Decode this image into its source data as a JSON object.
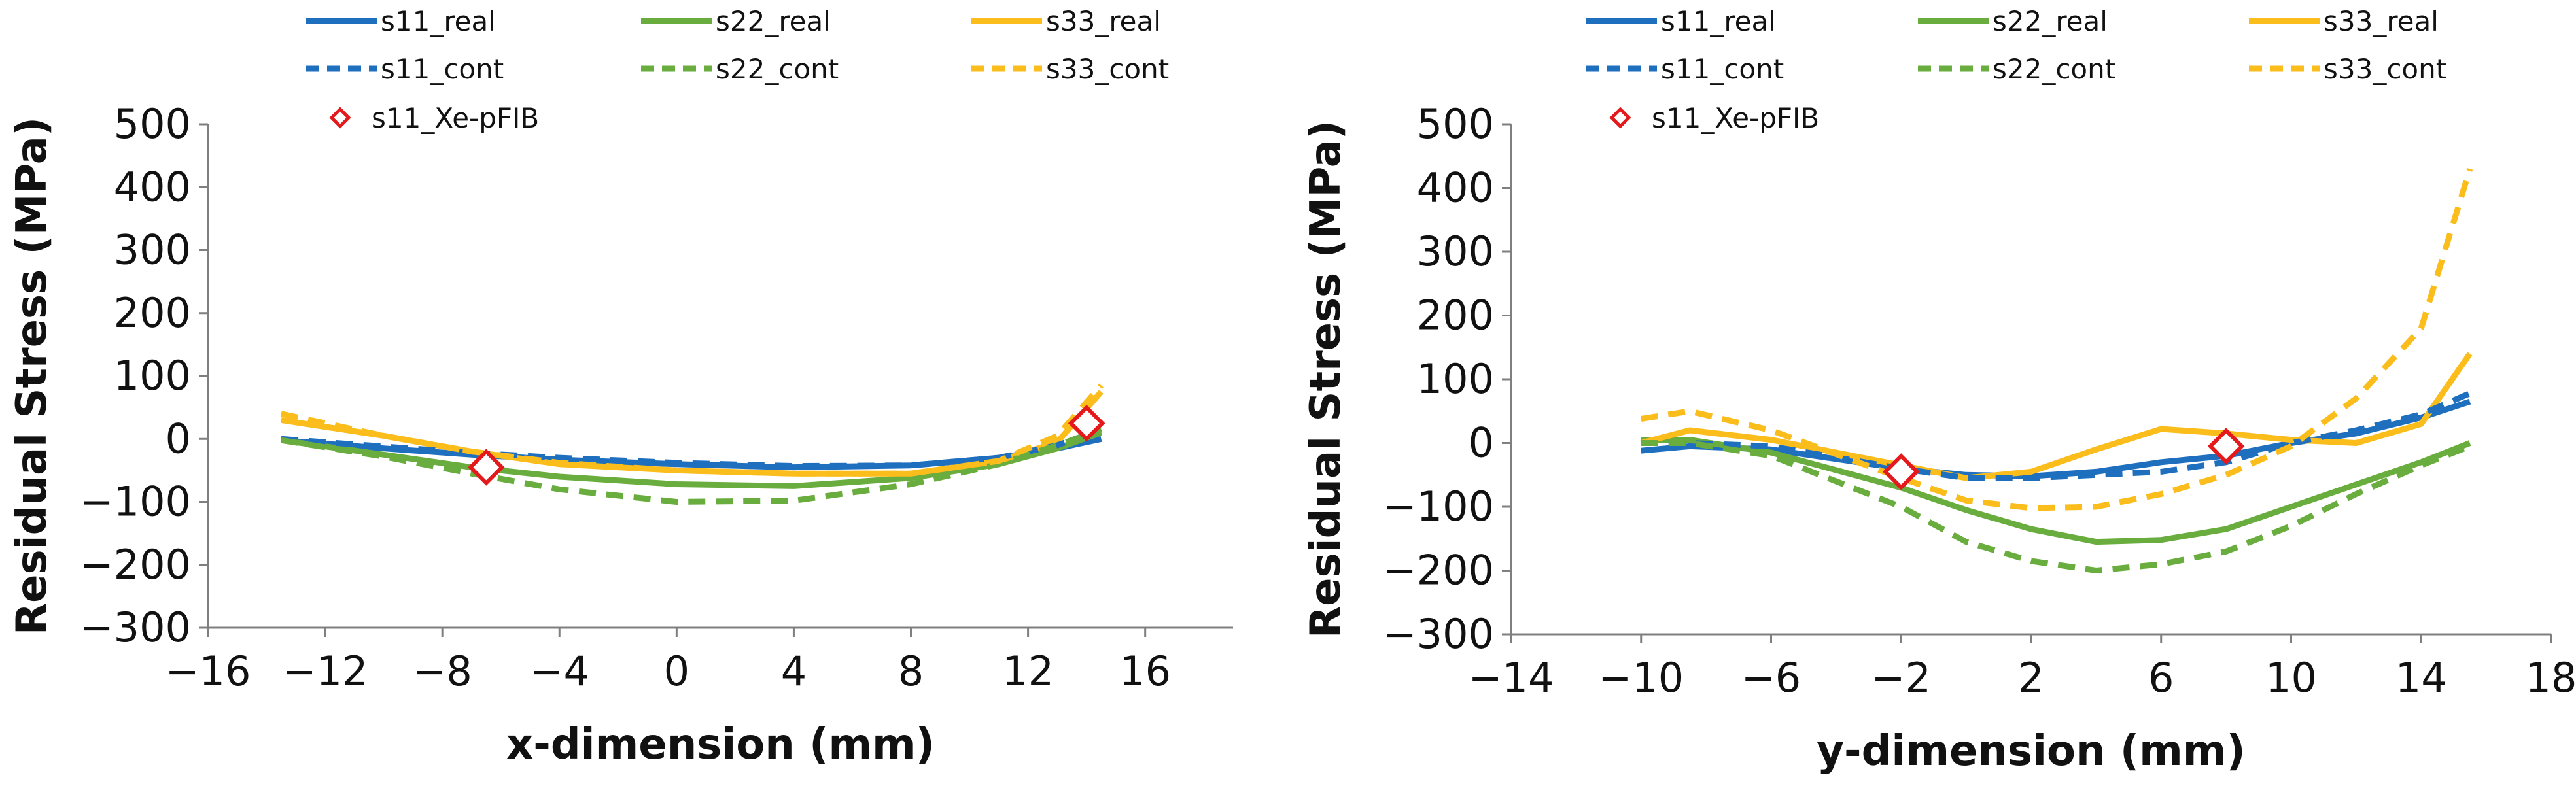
{
  "colors": {
    "s11": "#1f6fbf",
    "s22": "#6aad3f",
    "s33": "#fbbd1b",
    "marker": "#e3191c",
    "axis": "#7f7f7f"
  },
  "chart_data": [
    {
      "type": "line",
      "xlabel": "x-dimension (mm)",
      "ylabel": "Residual Stress (MPa)",
      "xlim": [
        -16,
        19
      ],
      "ylim": [
        -300,
        500
      ],
      "xticks": [
        -16,
        -12,
        -8,
        -4,
        0,
        4,
        8,
        12,
        16
      ],
      "yticks": [
        -300,
        -200,
        -100,
        0,
        100,
        200,
        300,
        400,
        500
      ],
      "series": [
        {
          "name": "s11_real",
          "key": "s11",
          "style": "solid",
          "x": [
            -13.5,
            -10,
            -7,
            -4,
            0,
            4,
            8,
            11,
            13,
            14.5
          ],
          "y": [
            -2,
            -15,
            -25,
            -33,
            -40,
            -45,
            -42,
            -30,
            -15,
            0
          ]
        },
        {
          "name": "s22_real",
          "key": "s22",
          "style": "solid",
          "x": [
            -13.5,
            -10,
            -7,
            -4,
            0,
            4,
            8,
            11,
            13,
            14.5
          ],
          "y": [
            -2,
            -25,
            -45,
            -60,
            -72,
            -75,
            -62,
            -40,
            -15,
            10
          ]
        },
        {
          "name": "s33_real",
          "key": "s33",
          "style": "solid",
          "x": [
            -13.5,
            -10,
            -7,
            -4,
            0,
            4,
            8,
            11,
            13,
            14.5
          ],
          "y": [
            30,
            5,
            -20,
            -40,
            -50,
            -55,
            -55,
            -35,
            -5,
            75
          ]
        },
        {
          "name": "s11_cont",
          "key": "s11",
          "style": "dashed",
          "x": [
            -13.5,
            -10,
            -7,
            -4,
            0,
            4,
            8,
            11,
            13,
            14.5
          ],
          "y": [
            0,
            -12,
            -22,
            -30,
            -38,
            -43,
            -42,
            -30,
            -10,
            15
          ]
        },
        {
          "name": "s22_cont",
          "key": "s22",
          "style": "dashed",
          "x": [
            -13.5,
            -10,
            -7,
            -4,
            0,
            4,
            8,
            11,
            13,
            14.5
          ],
          "y": [
            -2,
            -28,
            -55,
            -80,
            -100,
            -98,
            -72,
            -40,
            -10,
            15
          ]
        },
        {
          "name": "s33_cont",
          "key": "s33",
          "style": "dashed",
          "x": [
            -13.5,
            -10,
            -7,
            -4,
            0,
            4,
            8,
            11,
            13,
            14.5
          ],
          "y": [
            40,
            5,
            -20,
            -38,
            -50,
            -55,
            -55,
            -35,
            5,
            85
          ]
        },
        {
          "name": "s11_Xe-pFIB",
          "key": "marker",
          "style": "marker",
          "x": [
            -6.5,
            14
          ],
          "y": [
            -45,
            25
          ]
        }
      ]
    },
    {
      "type": "line",
      "xlabel": "y-dimension (mm)",
      "ylabel": "Residual Stress (MPa)",
      "xlim": [
        -14,
        18
      ],
      "ylim": [
        -300,
        500
      ],
      "xticks": [
        -14,
        -10,
        -6,
        -2,
        2,
        6,
        10,
        14,
        18
      ],
      "yticks": [
        -300,
        -200,
        -100,
        0,
        100,
        200,
        300,
        400,
        500
      ],
      "series": [
        {
          "name": "s11_real",
          "key": "s11",
          "style": "solid",
          "x": [
            -10,
            -8.5,
            -6,
            -2,
            0,
            2,
            4,
            6,
            8,
            10,
            12,
            14,
            15.5
          ],
          "y": [
            -12,
            -5,
            -10,
            -40,
            -50,
            -52,
            -45,
            -30,
            -20,
            0,
            15,
            40,
            65
          ]
        },
        {
          "name": "s22_real",
          "key": "s22",
          "style": "solid",
          "x": [
            -10,
            -8.5,
            -6,
            -2,
            0,
            2,
            4,
            6,
            8,
            10,
            12,
            14,
            15.5
          ],
          "y": [
            5,
            5,
            -15,
            -70,
            -105,
            -135,
            -155,
            -152,
            -135,
            -100,
            -65,
            -30,
            0
          ]
        },
        {
          "name": "s33_real",
          "key": "s33",
          "style": "solid",
          "x": [
            -10,
            -8.5,
            -6,
            -2,
            0,
            2,
            4,
            6,
            8,
            10,
            12,
            14,
            15.5
          ],
          "y": [
            0,
            20,
            5,
            -35,
            -55,
            -45,
            -10,
            22,
            15,
            5,
            0,
            30,
            140
          ]
        },
        {
          "name": "s11_cont",
          "key": "s11",
          "style": "dashed",
          "x": [
            -10,
            -8.5,
            -6,
            -2,
            0,
            2,
            4,
            6,
            8,
            10,
            12,
            14,
            15.5
          ],
          "y": [
            0,
            0,
            -5,
            -40,
            -55,
            -55,
            -50,
            -45,
            -30,
            0,
            20,
            45,
            78
          ]
        },
        {
          "name": "s22_cont",
          "key": "s22",
          "style": "dashed",
          "x": [
            -10,
            -8.5,
            -6,
            -2,
            0,
            2,
            4,
            6,
            8,
            10,
            12,
            14,
            15.5
          ],
          "y": [
            0,
            0,
            -20,
            -100,
            -155,
            -185,
            -200,
            -190,
            -170,
            -130,
            -80,
            -35,
            -5
          ]
        },
        {
          "name": "s33_cont",
          "key": "s33",
          "style": "dashed",
          "x": [
            -10,
            -8.5,
            -6,
            -2,
            0,
            2,
            4,
            6,
            8,
            10,
            12,
            14,
            15.5
          ],
          "y": [
            38,
            50,
            20,
            -55,
            -90,
            -102,
            -100,
            -80,
            -50,
            -5,
            70,
            180,
            430
          ]
        },
        {
          "name": "s11_Xe-pFIB",
          "key": "marker",
          "style": "marker",
          "x": [
            -2,
            8
          ],
          "y": [
            -45,
            -5
          ]
        }
      ]
    }
  ]
}
